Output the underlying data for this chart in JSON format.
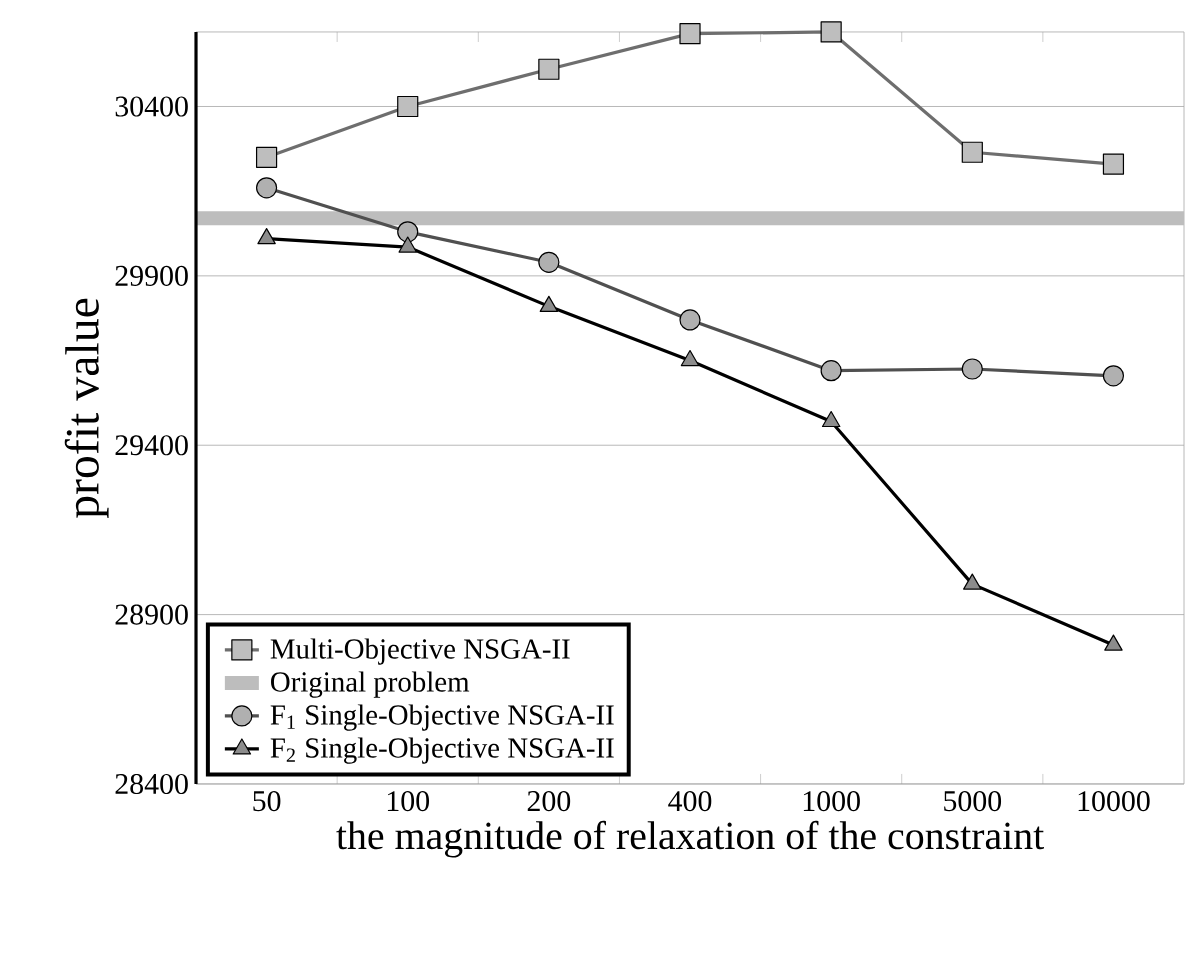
{
  "chart_data": {
    "type": "line",
    "xlabel": "the magnitude of relaxation of the constraint",
    "ylabel": "profit value",
    "categories": [
      "50",
      "100",
      "200",
      "400",
      "1000",
      "5000",
      "10000"
    ],
    "ylim": [
      28400,
      30620
    ],
    "yticks": [
      28400,
      28900,
      29400,
      29900,
      30400
    ],
    "grid": "y",
    "legend": "bottom left",
    "series": [
      {
        "name": "Multi-Objective NSGA-II",
        "color": "#6e6e6e",
        "marker": "square",
        "values": [
          30250,
          30400,
          30510,
          30615,
          30620,
          30265,
          30230
        ]
      },
      {
        "name": "F$_{1}$ Single-Objective NSGA-II",
        "color": "#505050",
        "marker": "circle",
        "values": [
          30160,
          30030,
          29940,
          29770,
          29620,
          29625,
          29605
        ]
      },
      {
        "name": "F$_{2}$ Single-Objective NSGA-II",
        "color": "#000000",
        "marker": "triangle",
        "values": [
          30010,
          29985,
          29810,
          29650,
          29470,
          28990,
          28810
        ]
      }
    ],
    "ref_lines": [
      {
        "axis": "y",
        "value": 30070,
        "label": "Original problem",
        "color": "#bdbdbd"
      }
    ]
  }
}
